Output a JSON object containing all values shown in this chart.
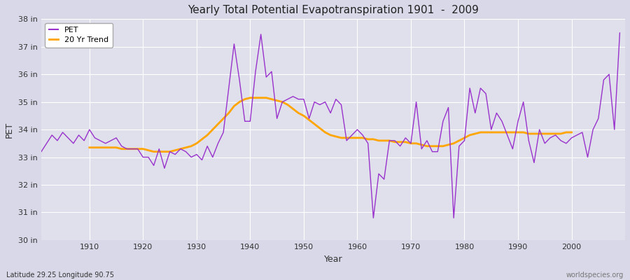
{
  "title": "Yearly Total Potential Evapotranspiration 1901  -  2009",
  "xlabel": "Year",
  "ylabel": "PET",
  "lat_lon_label": "Latitude 29.25 Longitude 90.75",
  "watermark": "worldspecies.org",
  "pet_color": "#9932CC",
  "trend_color": "#FFA500",
  "fig_bg_color": "#d8d8e8",
  "plot_bg_color": "#e0e0ec",
  "grid_color": "#ffffff",
  "ylim": [
    30,
    38
  ],
  "yticks": [
    30,
    31,
    32,
    33,
    34,
    35,
    36,
    37,
    38
  ],
  "ytick_labels": [
    "30 in",
    "31 in",
    "32 in",
    "33 in",
    "34 in",
    "35 in",
    "36 in",
    "37 in",
    "38 in"
  ],
  "xlim": [
    1901,
    2010
  ],
  "xticks": [
    1910,
    1920,
    1930,
    1940,
    1950,
    1960,
    1970,
    1980,
    1990,
    2000
  ],
  "years": [
    1901,
    1902,
    1903,
    1904,
    1905,
    1906,
    1907,
    1908,
    1909,
    1910,
    1911,
    1912,
    1913,
    1914,
    1915,
    1916,
    1917,
    1918,
    1919,
    1920,
    1921,
    1922,
    1923,
    1924,
    1925,
    1926,
    1927,
    1928,
    1929,
    1930,
    1931,
    1932,
    1933,
    1934,
    1935,
    1936,
    1937,
    1938,
    1939,
    1940,
    1941,
    1942,
    1943,
    1944,
    1945,
    1946,
    1947,
    1948,
    1949,
    1950,
    1951,
    1952,
    1953,
    1954,
    1955,
    1956,
    1957,
    1958,
    1959,
    1960,
    1961,
    1962,
    1963,
    1964,
    1965,
    1966,
    1967,
    1968,
    1969,
    1970,
    1971,
    1972,
    1973,
    1974,
    1975,
    1976,
    1977,
    1978,
    1979,
    1980,
    1981,
    1982,
    1983,
    1984,
    1985,
    1986,
    1987,
    1988,
    1989,
    1990,
    1991,
    1992,
    1993,
    1994,
    1995,
    1996,
    1997,
    1998,
    1999,
    2000,
    2001,
    2002,
    2003,
    2004,
    2005,
    2006,
    2007,
    2008,
    2009
  ],
  "pet_values": [
    33.2,
    33.5,
    33.8,
    33.6,
    33.9,
    33.7,
    33.5,
    33.8,
    33.6,
    34.0,
    33.7,
    33.6,
    33.5,
    33.6,
    33.7,
    33.4,
    33.3,
    33.3,
    33.3,
    33.0,
    33.0,
    32.7,
    33.3,
    32.6,
    33.2,
    33.1,
    33.3,
    33.2,
    33.0,
    33.1,
    32.9,
    33.4,
    33.0,
    33.5,
    33.9,
    35.5,
    37.1,
    35.8,
    34.3,
    34.3,
    36.1,
    37.45,
    35.9,
    36.1,
    34.4,
    35.0,
    35.1,
    35.2,
    35.1,
    35.1,
    34.4,
    35.0,
    34.9,
    35.0,
    34.6,
    35.1,
    34.9,
    33.6,
    33.8,
    34.0,
    33.8,
    33.5,
    30.8,
    32.4,
    32.2,
    33.6,
    33.6,
    33.4,
    33.7,
    33.5,
    35.0,
    33.3,
    33.6,
    33.2,
    33.2,
    34.3,
    34.8,
    30.8,
    33.4,
    33.6,
    35.5,
    34.6,
    35.5,
    35.3,
    34.0,
    34.6,
    34.3,
    33.8,
    33.3,
    34.3,
    35.0,
    33.6,
    32.8,
    34.0,
    33.5,
    33.7,
    33.8,
    33.6,
    33.5,
    33.7,
    33.8,
    33.9,
    33.0,
    34.0,
    34.4,
    35.8,
    36.0,
    34.0,
    37.5
  ],
  "trend_values": [
    null,
    null,
    null,
    null,
    null,
    null,
    null,
    null,
    null,
    33.35,
    33.35,
    33.35,
    33.35,
    33.35,
    33.35,
    33.3,
    33.3,
    33.3,
    33.3,
    33.3,
    33.25,
    33.2,
    33.2,
    33.2,
    33.2,
    33.25,
    33.3,
    33.35,
    33.4,
    33.5,
    33.65,
    33.8,
    34.0,
    34.2,
    34.4,
    34.6,
    34.85,
    35.0,
    35.1,
    35.15,
    35.15,
    35.15,
    35.15,
    35.1,
    35.05,
    35.0,
    34.9,
    34.75,
    34.6,
    34.5,
    34.35,
    34.2,
    34.05,
    33.9,
    33.8,
    33.75,
    33.7,
    33.7,
    33.7,
    33.7,
    33.7,
    33.65,
    33.65,
    33.6,
    33.6,
    33.6,
    33.55,
    33.55,
    33.55,
    33.5,
    33.5,
    33.45,
    33.4,
    33.4,
    33.4,
    33.4,
    33.45,
    33.5,
    33.6,
    33.7,
    33.8,
    33.85,
    33.9,
    33.9,
    33.9,
    33.9,
    33.9,
    33.9,
    33.9,
    33.9,
    33.9,
    33.85,
    33.85,
    33.85,
    33.85,
    33.85,
    33.85,
    33.85,
    33.9,
    33.9,
    null,
    null,
    null,
    null,
    null,
    null,
    null,
    null,
    null
  ]
}
